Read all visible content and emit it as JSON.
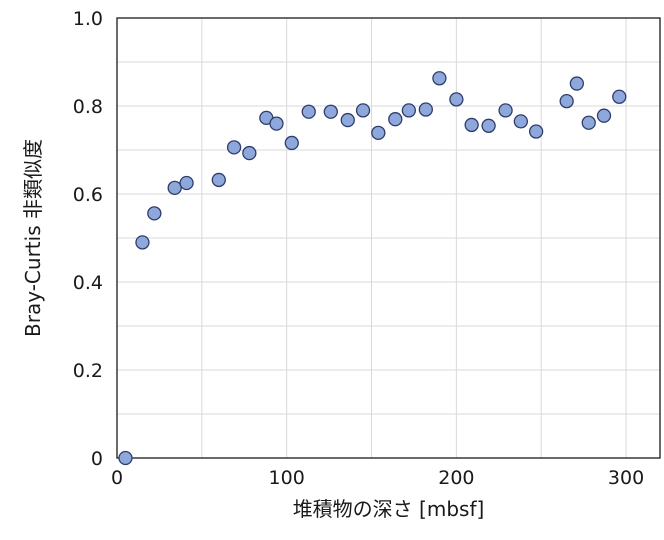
{
  "chart_data": {
    "type": "scatter",
    "xlabel": "堆積物の深さ [mbsf]",
    "ylabel": "Bray-Curtis 非類似度",
    "xlim": [
      0,
      320
    ],
    "ylim": [
      0,
      1.0
    ],
    "x_ticks": [
      {
        "value": 0,
        "label": "0"
      },
      {
        "value": 100,
        "label": "100"
      },
      {
        "value": 200,
        "label": "200"
      },
      {
        "value": 300,
        "label": "300"
      }
    ],
    "y_ticks": [
      {
        "value": 0,
        "label": "0"
      },
      {
        "value": 0.2,
        "label": "0.2"
      },
      {
        "value": 0.4,
        "label": "0.4"
      },
      {
        "value": 0.6,
        "label": "0.6"
      },
      {
        "value": 0.8,
        "label": "0.8"
      },
      {
        "value": 1.0,
        "label": "1.0"
      }
    ],
    "x_grid_step": 50,
    "y_grid_step": 0.1,
    "grid": true,
    "legend": "none",
    "marker_color": "#8fa8dc",
    "marker_edge_color": "#2f3d6b",
    "points": [
      {
        "x": 5,
        "y": 0.0
      },
      {
        "x": 15,
        "y": 0.49
      },
      {
        "x": 22,
        "y": 0.556
      },
      {
        "x": 34,
        "y": 0.614
      },
      {
        "x": 41,
        "y": 0.625
      },
      {
        "x": 60,
        "y": 0.632
      },
      {
        "x": 69,
        "y": 0.706
      },
      {
        "x": 78,
        "y": 0.693
      },
      {
        "x": 88,
        "y": 0.773
      },
      {
        "x": 94,
        "y": 0.76
      },
      {
        "x": 103,
        "y": 0.716
      },
      {
        "x": 113,
        "y": 0.787
      },
      {
        "x": 126,
        "y": 0.787
      },
      {
        "x": 136,
        "y": 0.768
      },
      {
        "x": 145,
        "y": 0.79
      },
      {
        "x": 154,
        "y": 0.739
      },
      {
        "x": 164,
        "y": 0.77
      },
      {
        "x": 172,
        "y": 0.79
      },
      {
        "x": 182,
        "y": 0.792
      },
      {
        "x": 190,
        "y": 0.863
      },
      {
        "x": 200,
        "y": 0.815
      },
      {
        "x": 209,
        "y": 0.757
      },
      {
        "x": 219,
        "y": 0.755
      },
      {
        "x": 229,
        "y": 0.79
      },
      {
        "x": 238,
        "y": 0.765
      },
      {
        "x": 247,
        "y": 0.742
      },
      {
        "x": 265,
        "y": 0.811
      },
      {
        "x": 271,
        "y": 0.851
      },
      {
        "x": 278,
        "y": 0.762
      },
      {
        "x": 287,
        "y": 0.778
      },
      {
        "x": 296,
        "y": 0.821
      }
    ]
  }
}
